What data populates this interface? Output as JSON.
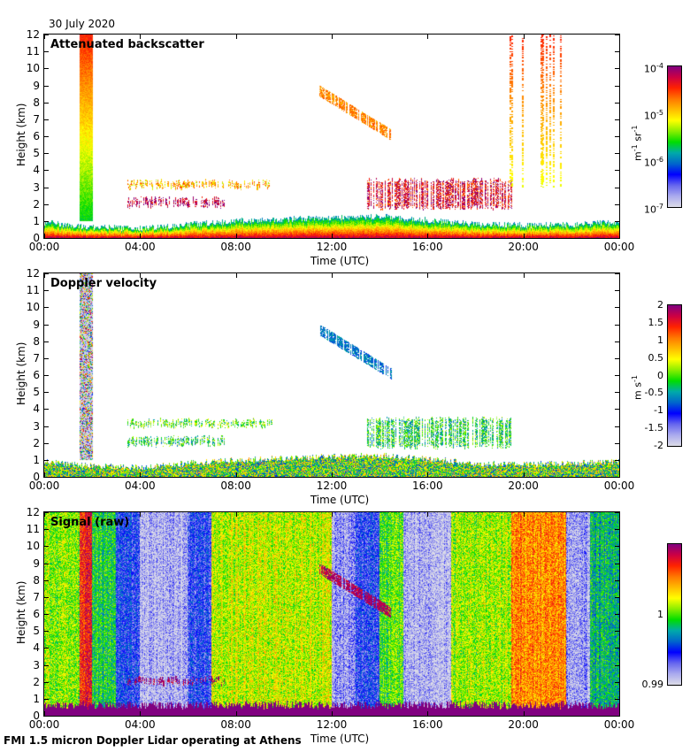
{
  "header": {
    "date": "30 July 2020"
  },
  "footer": {
    "caption": "FMI 1.5 micron Doppler Lidar operating at Athens"
  },
  "colormap": [
    "#dcdce8",
    "#aaaaee",
    "#6666ee",
    "#0000ff",
    "#0066cc",
    "#00aaaa",
    "#00dd00",
    "#88ee00",
    "#ffff00",
    "#ffbb00",
    "#ff7700",
    "#ff2200",
    "#cc0044",
    "#800080"
  ],
  "chart_data": [
    {
      "type": "heatmap",
      "title": "Attenuated backscatter",
      "xlabel": "Time (UTC)",
      "ylabel": "Height (km)",
      "x_range_hours": [
        0,
        24
      ],
      "y_range_km": [
        0,
        12
      ],
      "x_ticks": [
        "00:00",
        "04:00",
        "08:00",
        "12:00",
        "16:00",
        "20:00",
        "00:00"
      ],
      "y_ticks": [
        "0",
        "1",
        "2",
        "3",
        "4",
        "5",
        "6",
        "7",
        "8",
        "9",
        "10",
        "11",
        "12"
      ],
      "colorbar": {
        "label": "m-1 sr-1",
        "scale": "log",
        "range": [
          1e-07,
          0.0001
        ],
        "ticks": [
          "10-7",
          "10-6",
          "10-5",
          "10-4"
        ]
      },
      "features": [
        {
          "name": "boundary-layer",
          "t0": 0,
          "t1": 24,
          "top_km": [
            0.7,
            0.45,
            0.35,
            0.6,
            0.8,
            0.9,
            1.0,
            1.05,
            0.85,
            0.6,
            0.55,
            0.6,
            0.7
          ],
          "level": 0.55
        },
        {
          "name": "precip-column",
          "t0": 1.5,
          "t1": 2.0,
          "h0": 1.0,
          "h1": 12,
          "level_top": 0.85,
          "level_bottom": 0.45
        },
        {
          "name": "aerosol-layer",
          "t0": 3.5,
          "t1": 7.5,
          "h0": 1.9,
          "h1": 2.3,
          "level": 0.95
        },
        {
          "name": "aerosol-layer",
          "t0": 3.5,
          "t1": 9.5,
          "h0": 3.0,
          "h1": 3.3,
          "level": 0.7
        },
        {
          "name": "cirrus",
          "t0": 11.5,
          "t1": 14.5,
          "h0": 6.3,
          "h1": 8.9,
          "slope": true,
          "level": 0.75
        },
        {
          "name": "cloud-tops",
          "t0": 13.5,
          "t1": 19.5,
          "h0": 1.8,
          "h1": 3.4,
          "level": 0.9
        },
        {
          "name": "precip-streaks",
          "t0": 19.0,
          "t1": 21.8,
          "h0": 3.0,
          "h1": 12,
          "level": 0.8
        }
      ]
    },
    {
      "type": "heatmap",
      "title": "Doppler velocity",
      "xlabel": "Time (UTC)",
      "ylabel": "Height (km)",
      "x_range_hours": [
        0,
        24
      ],
      "y_range_km": [
        0,
        12
      ],
      "x_ticks": [
        "00:00",
        "04:00",
        "08:00",
        "12:00",
        "16:00",
        "20:00",
        "00:00"
      ],
      "y_ticks": [
        "0",
        "1",
        "2",
        "3",
        "4",
        "5",
        "6",
        "7",
        "8",
        "9",
        "10",
        "11",
        "12"
      ],
      "colorbar": {
        "label": "m s-1",
        "scale": "linear",
        "range": [
          -2,
          2
        ],
        "ticks": [
          "-2",
          "-1.5",
          "-1",
          "-0.5",
          "0",
          "0.5",
          "1",
          "1.5",
          "2"
        ]
      },
      "features": [
        {
          "name": "boundary-layer",
          "t0": 0,
          "t1": 24,
          "top_km": [
            0.7,
            0.45,
            0.35,
            0.6,
            0.8,
            0.9,
            1.0,
            1.05,
            0.85,
            0.6,
            0.55,
            0.6,
            0.7
          ],
          "level": 0.5
        },
        {
          "name": "precip-column",
          "t0": 1.5,
          "t1": 2.0,
          "h0": 1.0,
          "h1": 12,
          "level": 0.1
        },
        {
          "name": "aerosol-layer",
          "t0": 3.5,
          "t1": 7.5,
          "h0": 1.9,
          "h1": 2.3,
          "level": 0.45
        },
        {
          "name": "aerosol-layer",
          "t0": 3.5,
          "t1": 9.5,
          "h0": 3.0,
          "h1": 3.3,
          "level": 0.5
        },
        {
          "name": "cirrus",
          "t0": 11.5,
          "t1": 14.5,
          "h0": 6.3,
          "h1": 8.9,
          "slope": true,
          "level": 0.33
        },
        {
          "name": "cloud-tops",
          "t0": 13.5,
          "t1": 19.5,
          "h0": 1.8,
          "h1": 3.4,
          "level": 0.45
        }
      ]
    },
    {
      "type": "heatmap",
      "title": "Signal (raw)",
      "xlabel": "Time (UTC)",
      "ylabel": "Height (km)",
      "x_range_hours": [
        0,
        24
      ],
      "y_range_km": [
        0,
        12
      ],
      "x_ticks": [
        "00:00",
        "04:00",
        "08:00",
        "12:00",
        "16:00",
        "20:00",
        "00:00"
      ],
      "y_ticks": [
        "0",
        "1",
        "2",
        "3",
        "4",
        "5",
        "6",
        "7",
        "8",
        "9",
        "10",
        "11",
        "12"
      ],
      "colorbar": {
        "label": "",
        "scale": "linear",
        "range": [
          0.99,
          1.01
        ],
        "ticks": [
          "0.99",
          "1"
        ]
      },
      "background_bands": [
        {
          "t0": 0.0,
          "t1": 1.5,
          "level": 0.55
        },
        {
          "t0": 1.5,
          "t1": 2.0,
          "level": 0.85
        },
        {
          "t0": 2.0,
          "t1": 3.0,
          "level": 0.45
        },
        {
          "t0": 3.0,
          "t1": 4.0,
          "level": 0.22
        },
        {
          "t0": 4.0,
          "t1": 6.0,
          "level": 0.05
        },
        {
          "t0": 6.0,
          "t1": 7.0,
          "level": 0.2
        },
        {
          "t0": 7.0,
          "t1": 12.0,
          "level": 0.58
        },
        {
          "t0": 12.0,
          "t1": 13.0,
          "level": 0.1
        },
        {
          "t0": 13.0,
          "t1": 14.0,
          "level": 0.22
        },
        {
          "t0": 14.0,
          "t1": 15.0,
          "level": 0.5
        },
        {
          "t0": 15.0,
          "t1": 17.0,
          "level": 0.05
        },
        {
          "t0": 17.0,
          "t1": 19.5,
          "level": 0.55
        },
        {
          "t0": 19.5,
          "t1": 21.8,
          "level": 0.75
        },
        {
          "t0": 21.8,
          "t1": 22.8,
          "level": 0.08
        },
        {
          "t0": 22.8,
          "t1": 24.0,
          "level": 0.4
        }
      ],
      "features": [
        {
          "name": "surface-return",
          "t0": 0,
          "t1": 24,
          "h0": 0,
          "h1": 0.6,
          "level": 1.0
        },
        {
          "name": "aerosol-layer",
          "t0": 3.5,
          "t1": 7.5,
          "h0": 1.9,
          "h1": 2.2,
          "level": 1.0
        },
        {
          "name": "cirrus",
          "t0": 11.5,
          "t1": 14.5,
          "h0": 6.3,
          "h1": 8.9,
          "slope": true,
          "level": 0.95
        }
      ]
    }
  ]
}
